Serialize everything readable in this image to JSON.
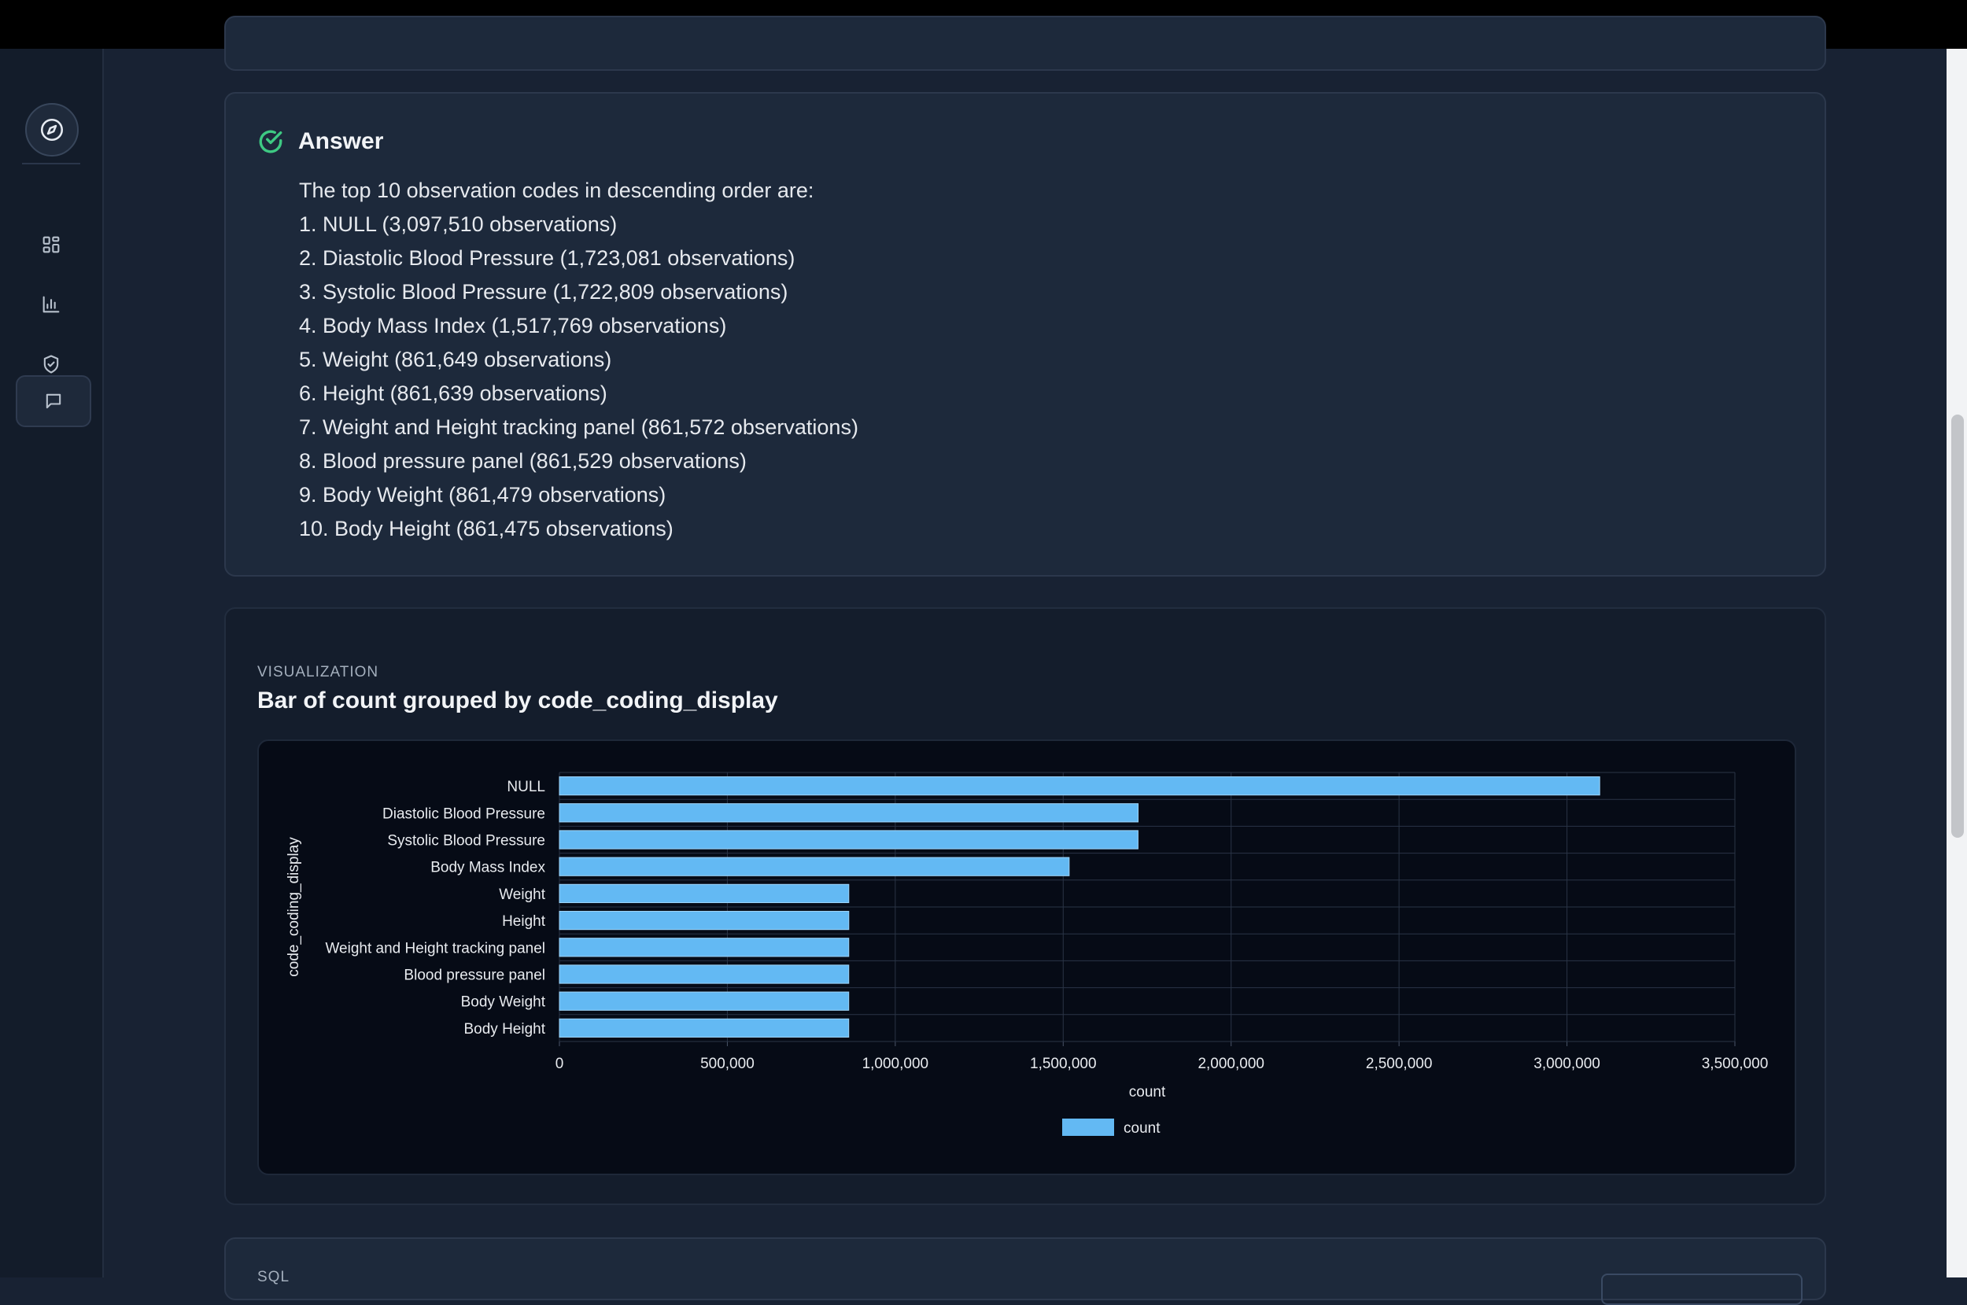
{
  "sidebar": {
    "items": [
      {
        "icon": "compass-icon"
      },
      {
        "icon": "dashboard-icon"
      },
      {
        "icon": "bar-chart-icon"
      },
      {
        "icon": "shield-check-icon"
      },
      {
        "icon": "chat-icon"
      }
    ]
  },
  "answer": {
    "title": "Answer",
    "intro": "The top 10 observation codes in descending order are:",
    "items": [
      "1. NULL (3,097,510 observations)",
      "2. Diastolic Blood Pressure (1,723,081 observations)",
      "3. Systolic Blood Pressure (1,722,809 observations)",
      "4. Body Mass Index (1,517,769 observations)",
      "5. Weight (861,649 observations)",
      "6. Height (861,639 observations)",
      "7. Weight and Height tracking panel (861,572 observations)",
      "8. Blood pressure panel (861,529 observations)",
      "9. Body Weight (861,479 observations)",
      "10. Body Height (861,475 observations)"
    ]
  },
  "visualization": {
    "kicker": "VISUALIZATION",
    "title": "Bar of count grouped by code_coding_display"
  },
  "sql": {
    "kicker": "SQL"
  },
  "colors": {
    "accent": "#63b9f3",
    "success": "#3ec983",
    "background": "#182233"
  },
  "chart_data": {
    "type": "bar",
    "orientation": "horizontal",
    "categories": [
      "NULL",
      "Diastolic Blood Pressure",
      "Systolic Blood Pressure",
      "Body Mass Index",
      "Weight",
      "Height",
      "Weight and Height tracking panel",
      "Blood pressure panel",
      "Body Weight",
      "Body Height"
    ],
    "series": [
      {
        "name": "count",
        "values": [
          3097510,
          1723081,
          1722809,
          1517769,
          861649,
          861639,
          861572,
          861529,
          861479,
          861475
        ]
      }
    ],
    "xlabel": "count",
    "ylabel": "code_coding_display",
    "xlim": [
      0,
      3500000
    ],
    "xticks": [
      "0",
      "500,000",
      "1,000,000",
      "1,500,000",
      "2,000,000",
      "2,500,000",
      "3,000,000",
      "3,500,000"
    ],
    "grid": true,
    "legend": "bottom",
    "bar_color": "#63b9f3"
  }
}
